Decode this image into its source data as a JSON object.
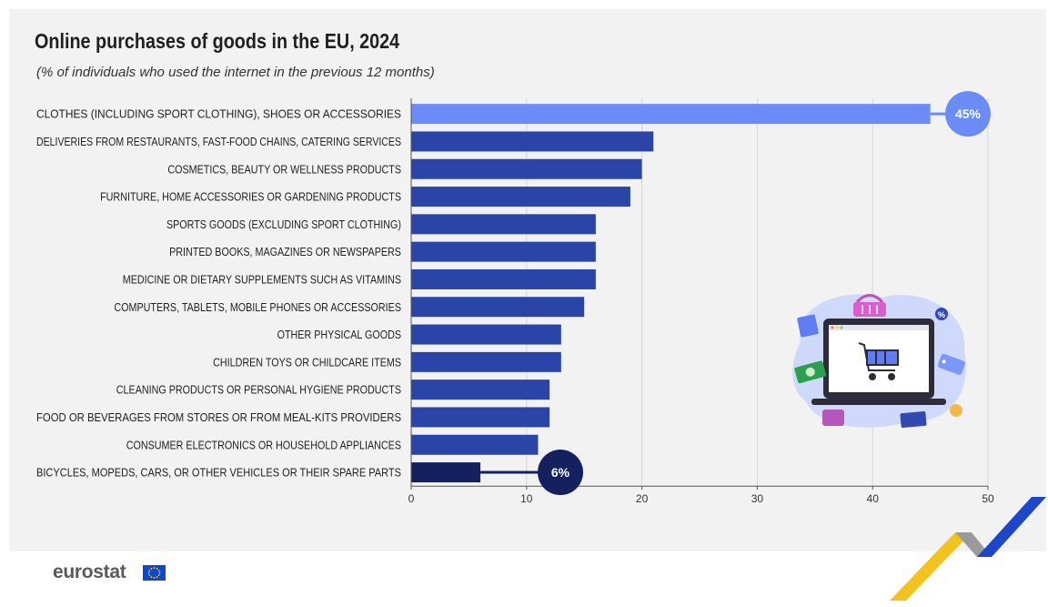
{
  "header": {
    "title": "Online purchases of goods in the EU, 2024",
    "subtitle": "(% of individuals who used the internet in the previous 12 months)"
  },
  "footer": {
    "logo_text": "eurostat"
  },
  "colors": {
    "highlight_top": "#6b8cf7",
    "bar_default": "#2b44a8",
    "highlight_bottom": "#14215e",
    "axis": "#555555",
    "grid": "#d6d6d6"
  },
  "icons": [
    "laptop-icon",
    "shopping-cart-icon",
    "shopping-basket-icon",
    "banknote-icon",
    "wallet-icon",
    "credit-card-icon",
    "price-tag-icon",
    "percent-badge-icon",
    "coin-icon",
    "eu-flag-icon"
  ],
  "chart_data": {
    "type": "bar",
    "orientation": "horizontal",
    "categories": [
      "CLOTHES (INCLUDING SPORT CLOTHING), SHOES OR ACCESSORIES",
      "DELIVERIES FROM RESTAURANTS, FAST-FOOD CHAINS, CATERING SERVICES",
      "COSMETICS, BEAUTY OR WELLNESS PRODUCTS",
      "FURNITURE, HOME ACCESSORIES OR GARDENING PRODUCTS",
      "SPORTS GOODS (EXCLUDING SPORT CLOTHING)",
      "PRINTED BOOKS, MAGAZINES OR NEWSPAPERS",
      "MEDICINE OR DIETARY SUPPLEMENTS SUCH AS VITAMINS",
      "COMPUTERS, TABLETS, MOBILE PHONES OR ACCESSORIES",
      "OTHER PHYSICAL GOODS",
      "CHILDREN TOYS OR CHILDCARE ITEMS",
      "CLEANING PRODUCTS OR PERSONAL HYGIENE PRODUCTS",
      "FOOD OR BEVERAGES FROM STORES OR FROM MEAL-KITS PROVIDERS",
      "CONSUMER ELECTRONICS OR HOUSEHOLD APPLIANCES",
      "BICYCLES, MOPEDS, CARS, OR OTHER VEHICLES OR THEIR SPARE PARTS"
    ],
    "values": [
      45,
      21,
      20,
      19,
      16,
      16,
      16,
      15,
      13,
      13,
      12,
      12,
      11,
      6
    ],
    "callouts": [
      {
        "index": 0,
        "label": "45%"
      },
      {
        "index": 13,
        "label": "6%"
      }
    ],
    "xlim": [
      0,
      50
    ],
    "xticks": [
      0,
      10,
      20,
      30,
      40,
      50
    ],
    "grid": true,
    "xlabel": "",
    "ylabel": ""
  }
}
